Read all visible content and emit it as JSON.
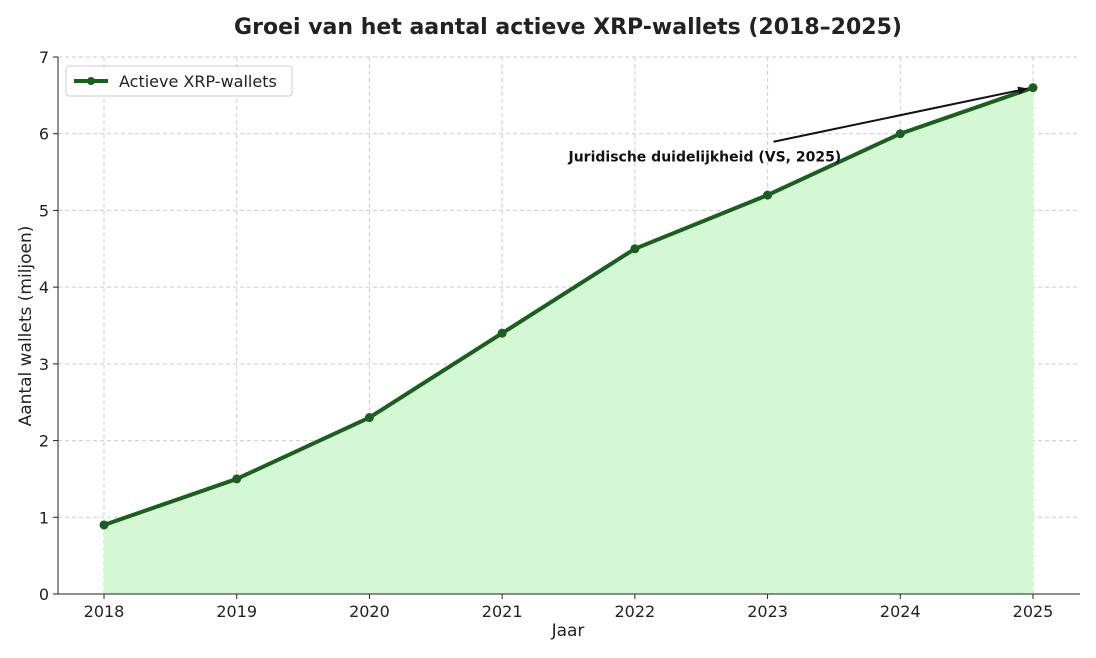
{
  "chart_data": {
    "type": "area",
    "title": "Groei van het aantal actieve XRP-wallets (2018–2025)",
    "xlabel": "Jaar",
    "ylabel": "Aantal wallets (miljoen)",
    "categories": [
      "2018",
      "2019",
      "2020",
      "2021",
      "2022",
      "2023",
      "2024",
      "2025"
    ],
    "series": [
      {
        "name": "Actieve XRP-wallets",
        "values": [
          0.9,
          1.5,
          2.3,
          3.4,
          4.5,
          5.2,
          6.0,
          6.6
        ]
      }
    ],
    "ylim": [
      0,
      7
    ],
    "yticks": [
      "0",
      "1",
      "2",
      "3",
      "4",
      "5",
      "6",
      "7"
    ],
    "grid": true,
    "legend_position": "top-left",
    "annotation": {
      "text": "Juridische duidelijkheid (VS, 2025)",
      "target_x": "2025",
      "target_y": 6.6,
      "text_x": "2021.5",
      "text_y": 5.7
    },
    "colors": {
      "line": "#1b5e20",
      "fill": "#d3f8d3",
      "grid": "#cccccc"
    }
  }
}
